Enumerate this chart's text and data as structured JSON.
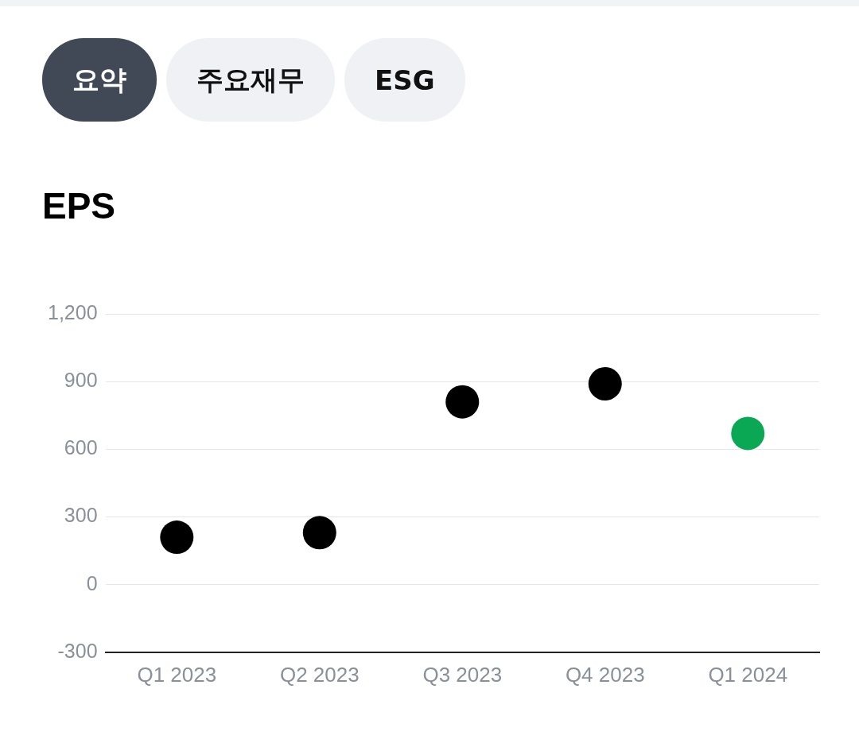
{
  "chart_data": {
    "type": "scatter",
    "title": "EPS",
    "annotations": [
      "요약",
      "주요재무",
      "ESG"
    ],
    "categories": [
      "Q1 2023",
      "Q2 2023",
      "Q3 2023",
      "Q4 2023",
      "Q1 2024"
    ],
    "values": [
      210,
      230,
      810,
      890,
      670
    ],
    "colors": [
      "#000000",
      "#000000",
      "#000000",
      "#000000",
      "#0aa854"
    ],
    "ylim": [
      -300,
      1200
    ],
    "yticks": [
      -300,
      0,
      300,
      600,
      900,
      {
        "value": 1200,
        "label": "1,200"
      }
    ],
    "grid": "y",
    "legend": false,
    "marker": "circle"
  }
}
